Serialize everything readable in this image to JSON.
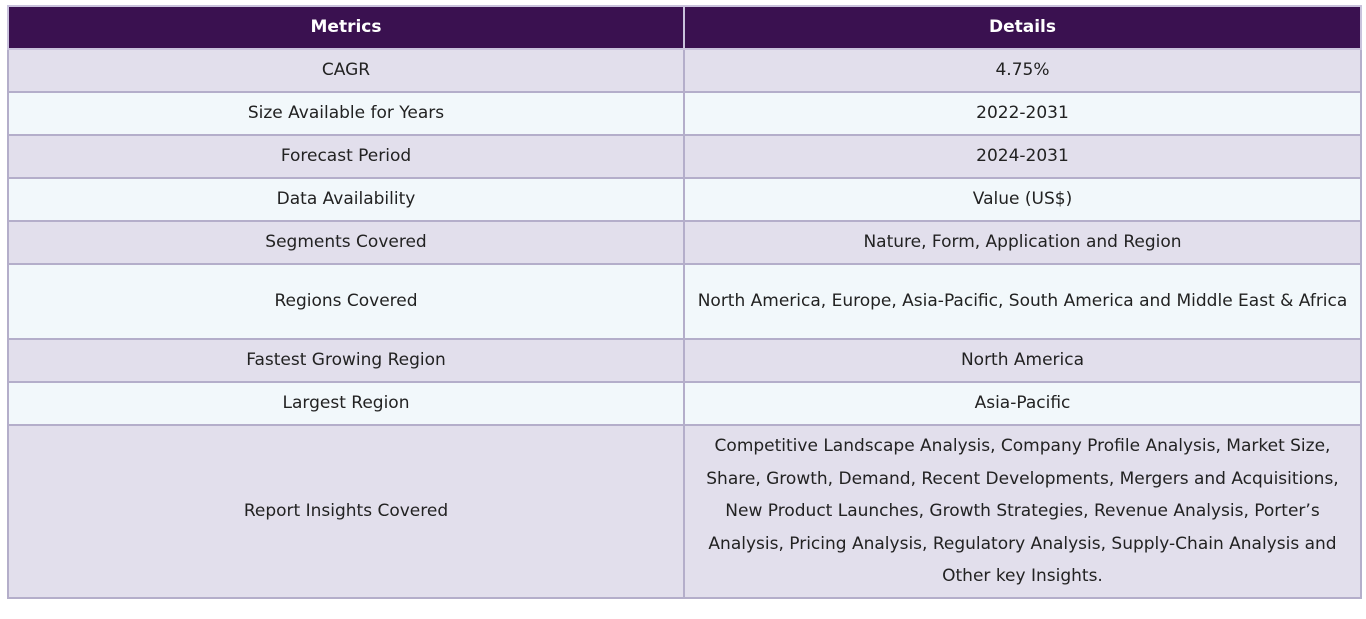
{
  "table": {
    "headers": [
      "Metrics",
      "Details"
    ],
    "rows": [
      {
        "metric": "CAGR",
        "detail": "4.75%"
      },
      {
        "metric": "Size Available for Years",
        "detail": "2022-2031"
      },
      {
        "metric": "Forecast Period",
        "detail": "2024-2031"
      },
      {
        "metric": "Data Availability",
        "detail": "Value (US$)"
      },
      {
        "metric": "Segments Covered",
        "detail": "Nature, Form, Application and Region"
      },
      {
        "metric": "Regions Covered",
        "detail": "North America, Europe, Asia-Pacific, South America and Middle East & Africa"
      },
      {
        "metric": "Fastest Growing Region",
        "detail": "North America"
      },
      {
        "metric": "Largest Region",
        "detail": "Asia-Pacific"
      },
      {
        "metric": "Report Insights Covered",
        "detail": "Competitive Landscape Analysis, Company Profile Analysis, Market Size, Share, Growth, Demand, Recent Developments, Mergers and Acquisitions, New Product Launches, Growth Strategies, Revenue Analysis, Porter’s Analysis, Pricing Analysis, Regulatory Analysis, Supply-Chain Analysis and Other key Insights."
      }
    ]
  },
  "colors": {
    "header_bg": "#3a1150",
    "row_odd_bg": "#e2dfec",
    "row_even_bg": "#f2f8fb",
    "border": "#b4aeca"
  }
}
